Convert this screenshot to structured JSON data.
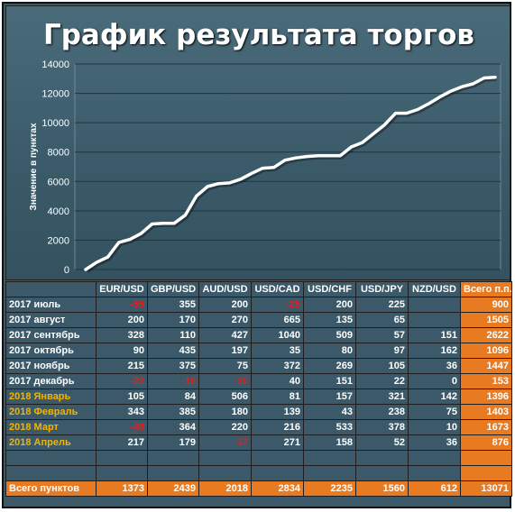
{
  "chart_data": {
    "type": "line",
    "title": "График результата торгов",
    "ylabel": "Значение в пунктах",
    "xlabel": "",
    "ylim": [
      0,
      14000
    ],
    "yticks": [
      0,
      2000,
      4000,
      6000,
      8000,
      10000,
      12000,
      14000
    ],
    "grid": true,
    "colors": {
      "line": "#ffffff",
      "background": "#3b5968"
    },
    "series": [
      {
        "values": [
          0,
          500,
          850,
          1850,
          2050,
          2450,
          3100,
          3150,
          3150,
          3700,
          5000,
          5650,
          5850,
          5900,
          6150,
          6550,
          6900,
          6950,
          7450,
          7600,
          7700,
          7750,
          7750,
          7750,
          8350,
          8650,
          9250,
          9850,
          10650,
          10650,
          10900,
          11300,
          11750,
          12150,
          12450,
          12650,
          13050,
          13100
        ]
      }
    ]
  },
  "table": {
    "headers": [
      "",
      "EUR/USD",
      "GBP/USD",
      "AUD/USD",
      "USD/CAD",
      "USD/CHF",
      "USD/JPY",
      "NZD/USD",
      "Всего п.п."
    ],
    "rows": [
      {
        "label": "2017 июль",
        "y2018": false,
        "cells": [
          "-55",
          "355",
          "200",
          "-25",
          "200",
          "225",
          ""
        ],
        "total": "900"
      },
      {
        "label": "2017 август",
        "y2018": false,
        "cells": [
          "200",
          "170",
          "270",
          "665",
          "135",
          "65",
          ""
        ],
        "total": "1505"
      },
      {
        "label": "2017 сентябрь",
        "y2018": false,
        "cells": [
          "328",
          "110",
          "427",
          "1040",
          "509",
          "57",
          "151"
        ],
        "total": "2622"
      },
      {
        "label": "2017 октябрь",
        "y2018": false,
        "cells": [
          "90",
          "435",
          "197",
          "35",
          "80",
          "97",
          "162"
        ],
        "total": "1096"
      },
      {
        "label": "2017 ноябрь",
        "y2018": false,
        "cells": [
          "215",
          "375",
          "75",
          "372",
          "269",
          "105",
          "36"
        ],
        "total": "1447"
      },
      {
        "label": "2017 декабрь",
        "y2018": false,
        "cells": [
          "-22",
          "-18",
          "-20",
          "40",
          "151",
          "22",
          "0"
        ],
        "total": "153"
      },
      {
        "label": "2018 Январь",
        "y2018": true,
        "cells": [
          "105",
          "84",
          "506",
          "81",
          "157",
          "321",
          "142"
        ],
        "total": "1396"
      },
      {
        "label": "2018 Февраль",
        "y2018": true,
        "cells": [
          "343",
          "385",
          "180",
          "139",
          "43",
          "238",
          "75"
        ],
        "total": "1403"
      },
      {
        "label": "2018 Март",
        "y2018": true,
        "cells": [
          "-48",
          "364",
          "220",
          "216",
          "533",
          "378",
          "10"
        ],
        "total": "1673"
      },
      {
        "label": "2018 Апрель",
        "y2018": true,
        "cells": [
          "217",
          "179",
          "-37",
          "271",
          "158",
          "52",
          "36"
        ],
        "total": "876"
      }
    ],
    "blank_rows": 2,
    "totals": {
      "label": "Всего пунктов",
      "cells": [
        "1373",
        "2439",
        "2018",
        "2834",
        "2235",
        "1560",
        "612"
      ],
      "total": "13071"
    }
  }
}
